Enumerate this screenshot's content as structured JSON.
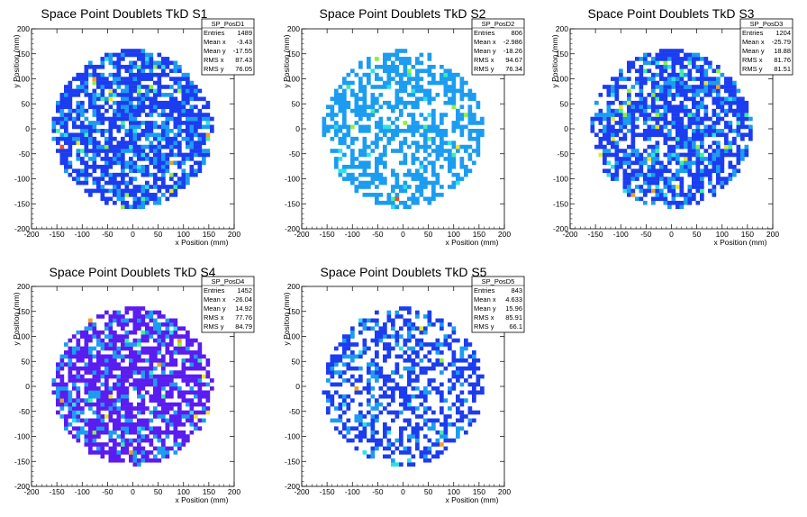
{
  "chart_data": [
    {
      "type": "heatmap",
      "title": "Space Point Doublets TkD S1",
      "xlabel": "x Position (mm)",
      "ylabel": "y Position (mm)",
      "xlim": [
        -200,
        200
      ],
      "ylim": [
        -200,
        200
      ],
      "xticks": [
        -200,
        -150,
        -100,
        -50,
        0,
        50,
        100,
        150,
        200
      ],
      "yticks": [
        -200,
        -150,
        -100,
        -50,
        0,
        50,
        100,
        150,
        200
      ],
      "stats": {
        "name": "SP_PosD1",
        "rows": [
          [
            "Entries",
            "1489"
          ],
          [
            "Mean x",
            "-3.43"
          ],
          [
            "Mean y",
            "-17.55"
          ],
          [
            "RMS x",
            "87.43"
          ],
          [
            "RMS y",
            "76.05"
          ]
        ]
      },
      "occupancy": 0.72,
      "hot_fraction": 0.1,
      "low_color": "#1c3cf0"
    },
    {
      "type": "heatmap",
      "title": "Space Point Doublets TkD S2",
      "xlabel": "x Position (mm)",
      "ylabel": "y Position (mm)",
      "xlim": [
        -200,
        200
      ],
      "ylim": [
        -200,
        200
      ],
      "xticks": [
        -200,
        -150,
        -100,
        -50,
        0,
        50,
        100,
        150,
        200
      ],
      "yticks": [
        -200,
        -150,
        -100,
        -50,
        0,
        50,
        100,
        150,
        200
      ],
      "stats": {
        "name": "SP_PosD2",
        "rows": [
          [
            "Entries",
            "806"
          ],
          [
            "Mean x",
            "-2.986"
          ],
          [
            "Mean y",
            "-18.26"
          ],
          [
            "RMS x",
            "94.67"
          ],
          [
            "RMS y",
            "76.34"
          ]
        ]
      },
      "occupancy": 0.52,
      "hot_fraction": 0.08,
      "low_color": "#1c9cf0"
    },
    {
      "type": "heatmap",
      "title": "Space Point Doublets TkD S3",
      "xlabel": "x Position (mm)",
      "ylabel": "y Position (mm)",
      "xlim": [
        -200,
        200
      ],
      "ylim": [
        -200,
        200
      ],
      "xticks": [
        -200,
        -150,
        -100,
        -50,
        0,
        50,
        100,
        150,
        200
      ],
      "yticks": [
        -200,
        -150,
        -100,
        -50,
        0,
        50,
        100,
        150,
        200
      ],
      "stats": {
        "name": "SP_PosD3",
        "rows": [
          [
            "Entries",
            "1204"
          ],
          [
            "Mean x",
            "-25.79"
          ],
          [
            "Mean y",
            "18.88"
          ],
          [
            "RMS x",
            "81.76"
          ],
          [
            "RMS y",
            "81.51"
          ]
        ]
      },
      "occupancy": 0.68,
      "hot_fraction": 0.07,
      "low_color": "#1c3cf0"
    },
    {
      "type": "heatmap",
      "title": "Space Point Doublets TkD S4",
      "xlabel": "x Position (mm)",
      "ylabel": "y Position (mm)",
      "xlim": [
        -200,
        200
      ],
      "ylim": [
        -200,
        200
      ],
      "xticks": [
        -200,
        -150,
        -100,
        -50,
        0,
        50,
        100,
        150,
        200
      ],
      "yticks": [
        -200,
        -150,
        -100,
        -50,
        0,
        50,
        100,
        150,
        200
      ],
      "stats": {
        "name": "SP_PosD4",
        "rows": [
          [
            "Entries",
            "1452"
          ],
          [
            "Mean x",
            "-26.04"
          ],
          [
            "Mean y",
            "14.92"
          ],
          [
            "RMS x",
            "77.76"
          ],
          [
            "RMS y",
            "84.79"
          ]
        ]
      },
      "occupancy": 0.72,
      "hot_fraction": 0.05,
      "low_color": "#5a1cf0"
    },
    {
      "type": "heatmap",
      "title": "Space Point Doublets TkD S5",
      "xlabel": "x Position (mm)",
      "ylabel": "y Position (mm)",
      "xlim": [
        -200,
        200
      ],
      "ylim": [
        -200,
        200
      ],
      "xticks": [
        -200,
        -150,
        -100,
        -50,
        0,
        50,
        100,
        150,
        200
      ],
      "yticks": [
        -200,
        -150,
        -100,
        -50,
        0,
        50,
        100,
        150,
        200
      ],
      "stats": {
        "name": "SP_PosD5",
        "rows": [
          [
            "Entries",
            "843"
          ],
          [
            "Mean x",
            "4.633"
          ],
          [
            "Mean y",
            "15.96"
          ],
          [
            "RMS x",
            "85.91"
          ],
          [
            "RMS y",
            "66.1"
          ]
        ]
      },
      "occupancy": 0.5,
      "hot_fraction": 0.06,
      "low_color": "#1c3cf0"
    }
  ],
  "colors": {
    "palette": [
      "#1c3cf0",
      "#1c9cf0",
      "#2ce0e8",
      "#3cf0a0",
      "#8cf03c",
      "#e8e81c",
      "#f0a01c",
      "#f04c1c"
    ]
  }
}
